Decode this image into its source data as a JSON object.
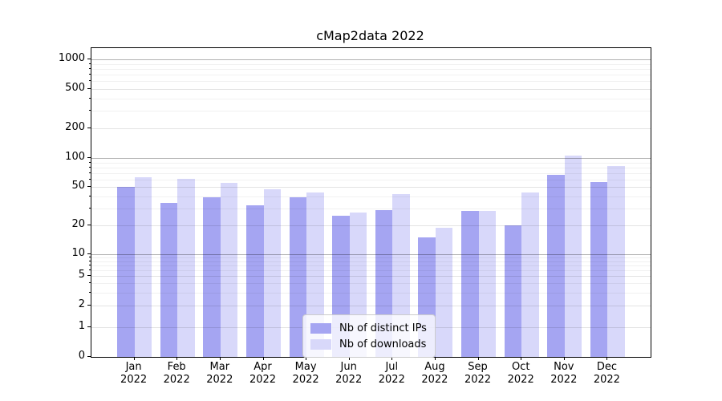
{
  "chart_data": {
    "type": "bar",
    "title": "cMap2data 2022",
    "categories": [
      "Jan",
      "Feb",
      "Mar",
      "Apr",
      "May",
      "Jun",
      "Jul",
      "Aug",
      "Sep",
      "Oct",
      "Nov",
      "Dec"
    ],
    "category_year": "2022",
    "series": [
      {
        "name": "Nb of distinct IPs",
        "color": "#a5a5f2",
        "values": [
          50,
          34,
          39,
          32,
          39,
          25,
          29,
          15,
          28,
          20,
          67,
          56
        ]
      },
      {
        "name": "Nb of downloads",
        "color": "#d8d8fa",
        "values": [
          63,
          61,
          55,
          47,
          44,
          27,
          42,
          19,
          28,
          44,
          105,
          82
        ]
      }
    ],
    "xlabel": "",
    "ylabel": "",
    "yscale": "symlog",
    "ylim": [
      0,
      1300
    ],
    "y_ticks": [
      0,
      1,
      2,
      5,
      10,
      20,
      50,
      100,
      200,
      500,
      1000
    ],
    "y_major_ticks": [
      10,
      100,
      1000
    ],
    "grid": true,
    "legend_position": "lower center"
  }
}
